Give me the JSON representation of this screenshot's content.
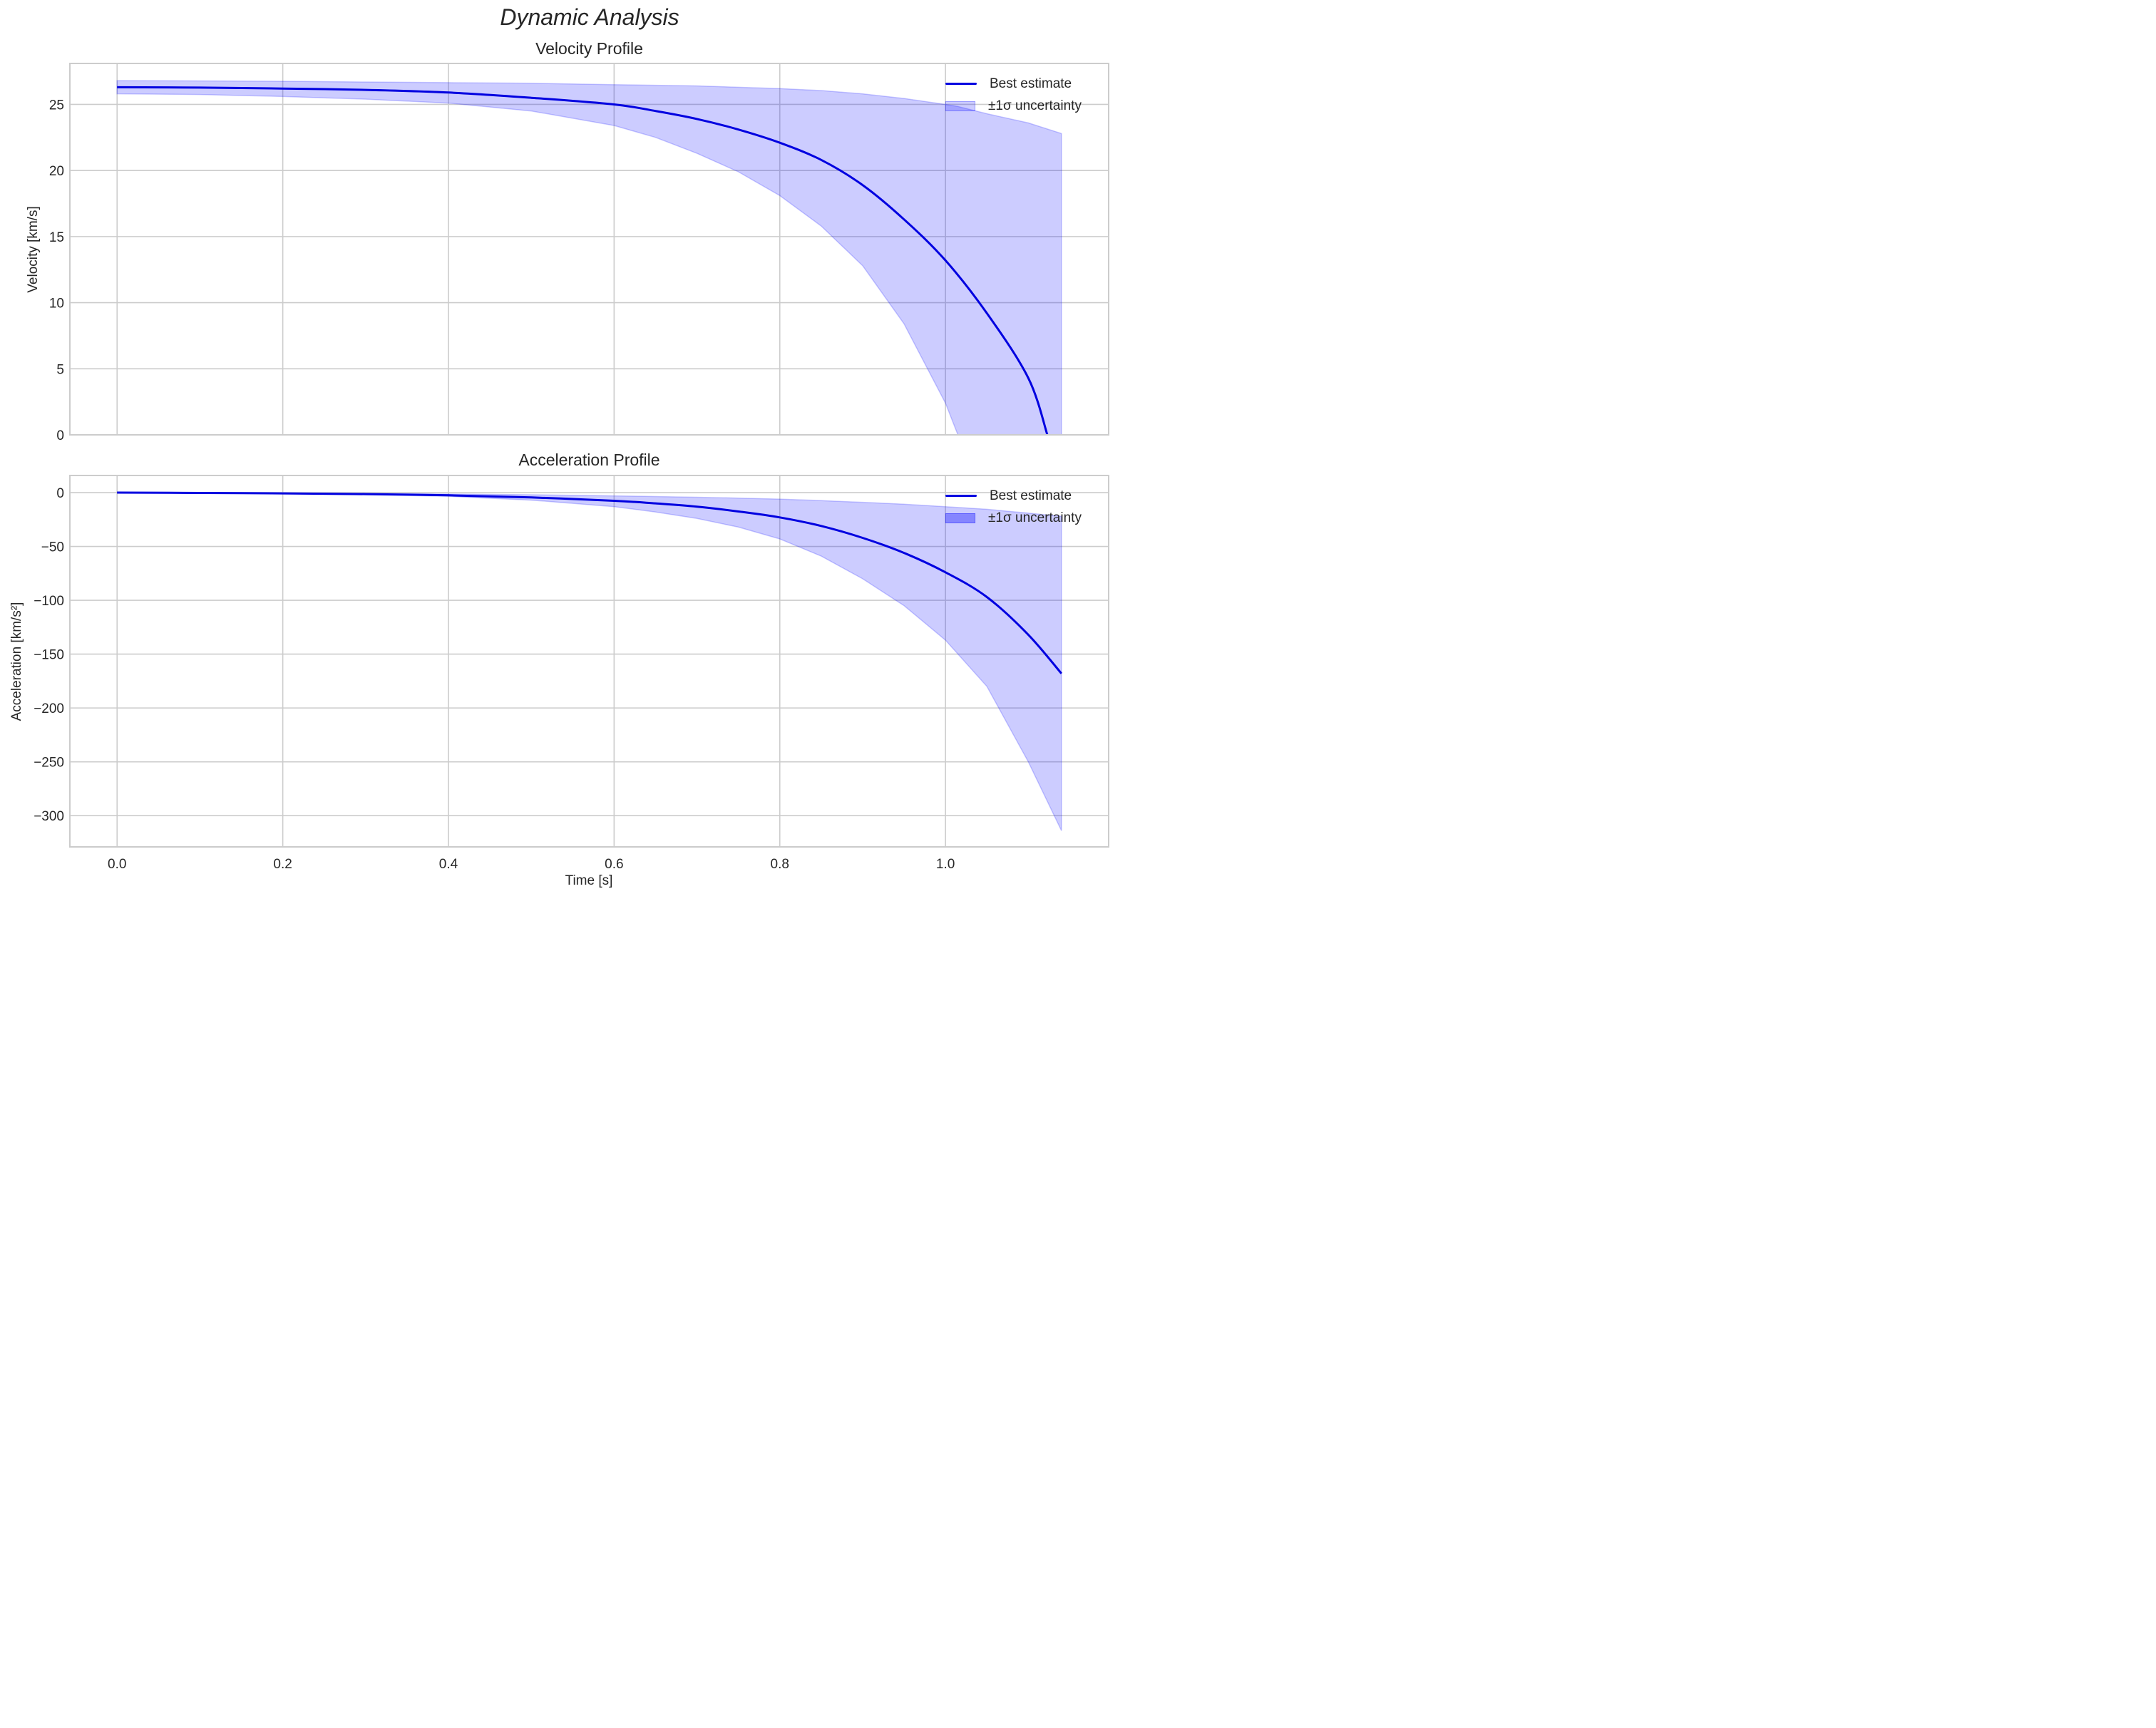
{
  "figure": {
    "title": "Dynamic Analysis",
    "colors": {
      "line": "#0000e0",
      "band_fill": "#0000ff",
      "band_alpha": 0.2,
      "grid": "#cccccc",
      "text": "#262626"
    }
  },
  "panels": [
    {
      "title": "Velocity Profile",
      "ylabel": "Velocity [km/s]",
      "yticks": [
        "0",
        "5",
        "10",
        "15",
        "20",
        "25"
      ],
      "legend": {
        "line_label": "Best estimate",
        "band_label": "±1σ uncertainty"
      }
    },
    {
      "title": "Acceleration Profile",
      "ylabel": "Acceleration [km/s²]",
      "xlabel": "Time [s]",
      "yticks": [
        "0",
        "−50",
        "−100",
        "−150",
        "−200",
        "−250",
        "−300"
      ],
      "xticks": [
        "0.0",
        "0.2",
        "0.4",
        "0.6",
        "0.8",
        "1.0"
      ],
      "legend": {
        "line_label": "Best estimate",
        "band_label": "±1σ uncertainty"
      }
    }
  ],
  "chart_data": [
    {
      "type": "line",
      "title": "Velocity Profile",
      "suptitle": "Dynamic Analysis",
      "xlabel": "",
      "ylabel": "Velocity [km/s]",
      "xlim": [
        -0.057,
        1.197
      ],
      "ylim": [
        0,
        28.1
      ],
      "xticks": [
        0.0,
        0.2,
        0.4,
        0.6,
        0.8,
        1.0
      ],
      "yticks": [
        0,
        5,
        10,
        15,
        20,
        25
      ],
      "grid": true,
      "legend_position": "upper right",
      "series": [
        {
          "name": "Best estimate",
          "kind": "line",
          "x": [
            0.0,
            0.1,
            0.2,
            0.3,
            0.4,
            0.5,
            0.6,
            0.65,
            0.7,
            0.75,
            0.8,
            0.85,
            0.9,
            0.95,
            1.0,
            1.05,
            1.1,
            1.123
          ],
          "y": [
            26.3,
            26.27,
            26.2,
            26.1,
            25.9,
            25.5,
            25.0,
            24.5,
            23.9,
            23.1,
            22.1,
            20.8,
            18.9,
            16.3,
            13.2,
            9.2,
            4.3,
            0.0
          ]
        },
        {
          "name": "±1σ uncertainty",
          "kind": "band",
          "x": [
            0.0,
            0.1,
            0.2,
            0.3,
            0.4,
            0.5,
            0.6,
            0.65,
            0.7,
            0.75,
            0.8,
            0.85,
            0.9,
            0.95,
            1.0,
            1.015,
            1.05,
            1.1,
            1.14
          ],
          "upper": [
            26.8,
            26.78,
            26.75,
            26.7,
            26.65,
            26.6,
            26.5,
            26.45,
            26.4,
            26.3,
            26.2,
            26.05,
            25.8,
            25.45,
            25.0,
            24.85,
            24.3,
            23.6,
            22.8
          ],
          "lower": [
            25.8,
            25.75,
            25.6,
            25.4,
            25.1,
            24.5,
            23.4,
            22.5,
            21.3,
            19.9,
            18.1,
            15.8,
            12.8,
            8.4,
            2.4,
            0.0,
            0.0,
            0.0,
            0.0
          ]
        }
      ]
    },
    {
      "type": "line",
      "title": "Acceleration Profile",
      "xlabel": "Time [s]",
      "ylabel": "Acceleration [km/s²]",
      "xlim": [
        -0.057,
        1.197
      ],
      "ylim": [
        -329,
        15.9
      ],
      "xticks": [
        0.0,
        0.2,
        0.4,
        0.6,
        0.8,
        1.0
      ],
      "yticks": [
        0,
        -50,
        -100,
        -150,
        -200,
        -250,
        -300
      ],
      "grid": true,
      "legend_position": "upper right",
      "series": [
        {
          "name": "Best estimate",
          "kind": "line",
          "x": [
            0.0,
            0.1,
            0.2,
            0.3,
            0.4,
            0.5,
            0.6,
            0.65,
            0.7,
            0.75,
            0.8,
            0.85,
            0.9,
            0.95,
            1.0,
            1.05,
            1.1,
            1.14
          ],
          "y": [
            0.0,
            -0.3,
            -0.7,
            -1.4,
            -2.5,
            -4.5,
            -7.6,
            -10.0,
            -13.0,
            -17.5,
            -23.0,
            -31.0,
            -42.0,
            -56.0,
            -74.0,
            -97.0,
            -132.0,
            -168.0
          ]
        },
        {
          "name": "±1σ uncertainty",
          "kind": "band",
          "x": [
            0.0,
            0.1,
            0.2,
            0.3,
            0.4,
            0.5,
            0.6,
            0.65,
            0.7,
            0.75,
            0.8,
            0.85,
            0.9,
            0.95,
            1.0,
            1.05,
            1.1,
            1.14
          ],
          "upper": [
            0.0,
            -0.2,
            -0.4,
            -0.8,
            -1.3,
            -2.0,
            -3.0,
            -3.6,
            -4.3,
            -5.1,
            -6.0,
            -7.4,
            -9.0,
            -10.8,
            -13.0,
            -15.5,
            -19.0,
            -22.0
          ],
          "lower": [
            0.0,
            -0.4,
            -1.0,
            -2.0,
            -3.5,
            -7.0,
            -13.0,
            -18.0,
            -24.0,
            -32.0,
            -43.0,
            -59.0,
            -80.0,
            -105.0,
            -137.0,
            -180.0,
            -250.0,
            -314.0
          ]
        }
      ]
    }
  ]
}
